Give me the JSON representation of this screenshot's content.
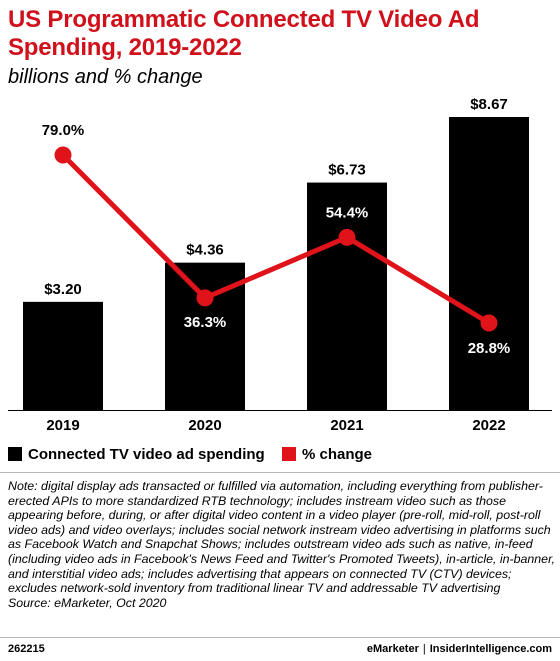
{
  "header": {
    "title": "US Programmatic Connected TV Video Ad Spending, 2019-2022",
    "subtitle": "billions and % change"
  },
  "chart_data": {
    "type": "bar",
    "categories": [
      "2019",
      "2020",
      "2021",
      "2022"
    ],
    "series": [
      {
        "name": "Connected TV video ad spending",
        "type": "bar",
        "values": [
          3.2,
          4.36,
          6.73,
          8.67
        ],
        "labels": [
          "$3.20",
          "$4.36",
          "$6.73",
          "$8.67"
        ],
        "color": "#000000"
      },
      {
        "name": "% change",
        "type": "line",
        "values": [
          79.0,
          36.3,
          54.4,
          28.8
        ],
        "labels": [
          "79.0%",
          "36.3%",
          "54.4%",
          "28.8%"
        ],
        "color": "#e0131b"
      }
    ],
    "legend_position": "bottom-left",
    "grid": false
  },
  "note": {
    "text": "Note: digital display ads transacted or fulfilled via automation, including everything from publisher-erected APIs to more standardized RTB technology; includes instream video such as those appearing before, during, or after digital video content in a video player (pre-roll, mid-roll, post-roll video ads) and video overlays; includes social network instream video advertising in platforms such as Facebook Watch and Snapchat Shows; includes outstream video ads such as native, in-feed (including video ads in Facebook's News Feed and Twitter's Promoted Tweets), in-article, in-banner, and interstitial video ads; includes advertising that appears on connected TV (CTV) devices; excludes network-sold inventory from traditional linear TV and addressable TV advertising",
    "source": "Source: eMarketer, Oct 2020"
  },
  "footer": {
    "id": "262215",
    "brand1": "eMarketer",
    "separator": "|",
    "brand2": "InsiderIntelligence.com"
  }
}
